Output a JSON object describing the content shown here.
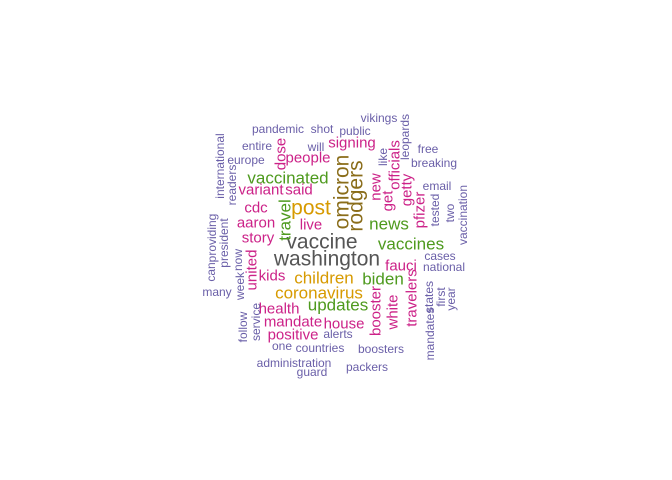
{
  "colors": {
    "c1": "#555555",
    "c2": "#8a6d1a",
    "c3": "#d79a00",
    "c4": "#4e9a1e",
    "c5": "#cc2288",
    "c6": "#6a5fa8"
  },
  "words": [
    {
      "text": "vaccine",
      "color": "c1",
      "size": 3
    },
    {
      "text": "washington",
      "color": "c1",
      "size": 3
    },
    {
      "text": "rodgers",
      "color": "c2",
      "size": 3
    },
    {
      "text": "omicron",
      "color": "c2",
      "size": 3
    },
    {
      "text": "post",
      "color": "c3",
      "size": 3
    },
    {
      "text": "children",
      "color": "c3",
      "size": 2
    },
    {
      "text": "coronavirus",
      "color": "c3",
      "size": 2
    },
    {
      "text": "updates",
      "color": "c4",
      "size": 2
    },
    {
      "text": "vaccinated",
      "color": "c4",
      "size": 2
    },
    {
      "text": "travel",
      "color": "c4",
      "size": 2
    },
    {
      "text": "news",
      "color": "c4",
      "size": 2
    },
    {
      "text": "vaccines",
      "color": "c4",
      "size": 2
    },
    {
      "text": "biden",
      "color": "c4",
      "size": 2
    },
    {
      "text": "people",
      "color": "c5",
      "size": 1
    },
    {
      "text": "signing",
      "color": "c5",
      "size": 1
    },
    {
      "text": "dose",
      "color": "c5",
      "size": 1
    },
    {
      "text": "said",
      "color": "c5",
      "size": 1
    },
    {
      "text": "variant",
      "color": "c5",
      "size": 1
    },
    {
      "text": "cdc",
      "color": "c5",
      "size": 1
    },
    {
      "text": "aaron",
      "color": "c5",
      "size": 1
    },
    {
      "text": "live",
      "color": "c5",
      "size": 1
    },
    {
      "text": "story",
      "color": "c5",
      "size": 1
    },
    {
      "text": "kids",
      "color": "c5",
      "size": 1
    },
    {
      "text": "united",
      "color": "c5",
      "size": 1
    },
    {
      "text": "health",
      "color": "c5",
      "size": 1
    },
    {
      "text": "mandate",
      "color": "c5",
      "size": 1
    },
    {
      "text": "house",
      "color": "c5",
      "size": 1
    },
    {
      "text": "positive",
      "color": "c5",
      "size": 1
    },
    {
      "text": "fauci",
      "color": "c5",
      "size": 1
    },
    {
      "text": "booster",
      "color": "c5",
      "size": 1
    },
    {
      "text": "white",
      "color": "c5",
      "size": 1
    },
    {
      "text": "travelers",
      "color": "c5",
      "size": 1
    },
    {
      "text": "new",
      "color": "c5",
      "size": 1
    },
    {
      "text": "get",
      "color": "c5",
      "size": 1
    },
    {
      "text": "officials",
      "color": "c5",
      "size": 1
    },
    {
      "text": "getty",
      "color": "c5",
      "size": 1
    },
    {
      "text": "pfizer",
      "color": "c5",
      "size": 1
    },
    {
      "text": "vikings",
      "color": "c6",
      "size": 0
    },
    {
      "text": "leopards",
      "color": "c6",
      "size": 0
    },
    {
      "text": "pandemic",
      "color": "c6",
      "size": 0
    },
    {
      "text": "shot",
      "color": "c6",
      "size": 0
    },
    {
      "text": "public",
      "color": "c6",
      "size": 0
    },
    {
      "text": "entire",
      "color": "c6",
      "size": 0
    },
    {
      "text": "will",
      "color": "c6",
      "size": 0
    },
    {
      "text": "free",
      "color": "c6",
      "size": 0
    },
    {
      "text": "international",
      "color": "c6",
      "size": 0
    },
    {
      "text": "europe",
      "color": "c6",
      "size": 0
    },
    {
      "text": "like",
      "color": "c6",
      "size": 0
    },
    {
      "text": "breaking",
      "color": "c6",
      "size": 0
    },
    {
      "text": "readers",
      "color": "c6",
      "size": 0
    },
    {
      "text": "email",
      "color": "c6",
      "size": 0
    },
    {
      "text": "tested",
      "color": "c6",
      "size": 0
    },
    {
      "text": "two",
      "color": "c6",
      "size": 0
    },
    {
      "text": "vaccination",
      "color": "c6",
      "size": 0
    },
    {
      "text": "providing",
      "color": "c6",
      "size": 0
    },
    {
      "text": "president",
      "color": "c6",
      "size": 0
    },
    {
      "text": "can",
      "color": "c6",
      "size": 0
    },
    {
      "text": "now",
      "color": "c6",
      "size": 0
    },
    {
      "text": "cases",
      "color": "c6",
      "size": 0
    },
    {
      "text": "national",
      "color": "c6",
      "size": 0
    },
    {
      "text": "many",
      "color": "c6",
      "size": 0
    },
    {
      "text": "week",
      "color": "c6",
      "size": 0
    },
    {
      "text": "follow",
      "color": "c6",
      "size": 0
    },
    {
      "text": "service",
      "color": "c6",
      "size": 0
    },
    {
      "text": "first",
      "color": "c6",
      "size": 0
    },
    {
      "text": "year",
      "color": "c6",
      "size": 0
    },
    {
      "text": "states",
      "color": "c6",
      "size": 0
    },
    {
      "text": "mandates",
      "color": "c6",
      "size": 0
    },
    {
      "text": "alerts",
      "color": "c6",
      "size": 0
    },
    {
      "text": "one",
      "color": "c6",
      "size": 0
    },
    {
      "text": "countries",
      "color": "c6",
      "size": 0
    },
    {
      "text": "boosters",
      "color": "c6",
      "size": 0
    },
    {
      "text": "administration",
      "color": "c6",
      "size": 0
    },
    {
      "text": "guard",
      "color": "c6",
      "size": 0
    },
    {
      "text": "packers",
      "color": "c6",
      "size": 0
    }
  ]
}
